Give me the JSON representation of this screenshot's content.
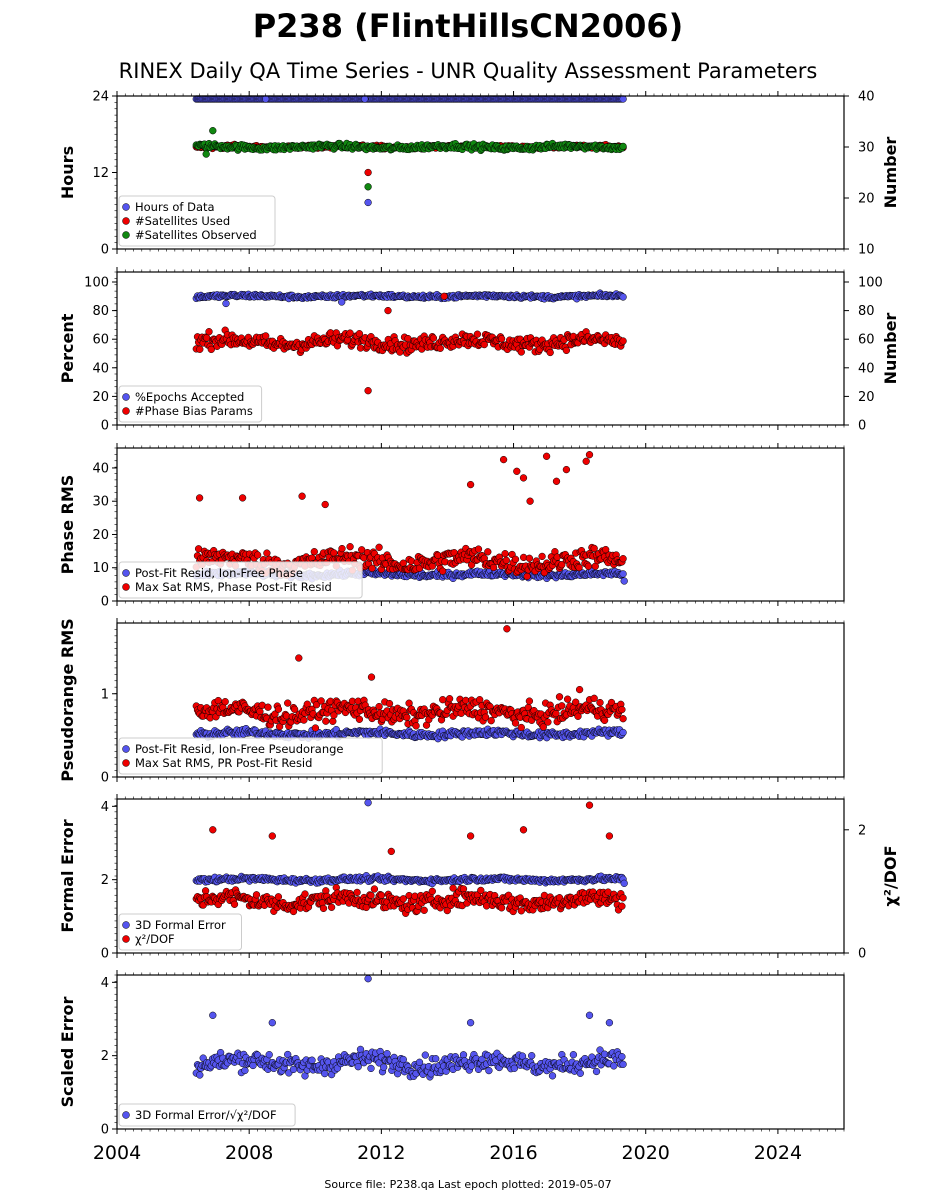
{
  "title": "P238 (FlintHillsCN2006)",
  "subtitle": "RINEX Daily QA Time Series - UNR Quality Assessment Parameters",
  "footer": "Source file: P238.qa Last epoch plotted: 2019-05-07",
  "colors": {
    "blue": "#5555ee",
    "red": "#ee0000",
    "green": "#118811",
    "edge": "#000000"
  },
  "chart_data": [
    {
      "type": "scatter",
      "panel": "hours",
      "ylabel": "Hours",
      "y2label": "Number",
      "ylim": [
        0,
        24
      ],
      "y2lim": [
        10,
        40
      ],
      "yticks": [
        "0",
        "12",
        "24"
      ],
      "y2ticks": [
        "10",
        "20",
        "30",
        "40"
      ],
      "legend_position": "lower-left",
      "series": [
        {
          "name": "Hours of Data",
          "axis": "left",
          "color": "blue",
          "start": 2006.4,
          "end": 2019.35,
          "base": 24,
          "noise": 0.05,
          "outliers": [
            [
              2011.5,
              24.0
            ],
            [
              2008.5,
              24.0
            ],
            [
              2011.6,
              7.3
            ]
          ]
        },
        {
          "name": "#Satellites Used",
          "axis": "right",
          "color": "red",
          "start": 2006.4,
          "end": 2019.35,
          "base": 30,
          "noise": 0.3,
          "outliers": [
            [
              2011.6,
              25.0
            ],
            [
              2009.2,
              30.2
            ]
          ]
        },
        {
          "name": "#Satellites Observed",
          "axis": "right",
          "color": "green",
          "start": 2006.4,
          "end": 2019.35,
          "base": 30,
          "noise": 0.5,
          "outliers": [
            [
              2006.9,
              33.2
            ],
            [
              2011.6,
              22.2
            ],
            [
              2006.7,
              28.6
            ]
          ]
        }
      ]
    },
    {
      "type": "scatter",
      "panel": "percent",
      "ylabel": "Percent",
      "y2label": "Number",
      "ylim": [
        0,
        107
      ],
      "y2lim": [
        0,
        107
      ],
      "yticks": [
        "0",
        "20",
        "40",
        "60",
        "80",
        "100"
      ],
      "y2ticks": [
        "0",
        "20",
        "40",
        "60",
        "80",
        "100"
      ],
      "legend_position": "lower-left",
      "series": [
        {
          "name": "%Epochs Accepted",
          "axis": "left",
          "color": "blue",
          "start": 2006.4,
          "end": 2019.35,
          "base": 90,
          "noise": 1.2,
          "outliers": [
            [
              2007.3,
              85
            ],
            [
              2010.8,
              86
            ]
          ]
        },
        {
          "name": "#Phase Bias Params",
          "axis": "right",
          "color": "red",
          "start": 2006.4,
          "end": 2019.35,
          "base": 58,
          "noise": 5,
          "outliers": [
            [
              2011.6,
              24
            ],
            [
              2013.9,
              90
            ],
            [
              2012.2,
              80
            ]
          ]
        }
      ]
    },
    {
      "type": "scatter",
      "panel": "phase",
      "ylabel": "Phase RMS",
      "ylim": [
        0,
        46
      ],
      "yticks": [
        "0",
        "10",
        "20",
        "30",
        "40"
      ],
      "legend_position": "lower-left",
      "series": [
        {
          "name": "Post-Fit Resid, Ion-Free Phase",
          "axis": "left",
          "color": "blue",
          "start": 2006.4,
          "end": 2019.35,
          "base": 8,
          "noise": 0.8,
          "outliers": [
            [
              2019.35,
              6
            ]
          ]
        },
        {
          "name": "Max Sat RMS, Phase Post-Fit Resid",
          "axis": "left",
          "color": "red",
          "start": 2006.4,
          "end": 2019.35,
          "base": 12,
          "noise": 3,
          "outliers": [
            [
              2006.5,
              31
            ],
            [
              2007.8,
              31
            ],
            [
              2009.6,
              31.5
            ],
            [
              2010.3,
              29
            ],
            [
              2015.7,
              42.5
            ],
            [
              2016.1,
              39
            ],
            [
              2016.3,
              37
            ],
            [
              2017.0,
              43.5
            ],
            [
              2017.6,
              39.5
            ],
            [
              2018.2,
              42
            ],
            [
              2018.3,
              44
            ],
            [
              2014.7,
              35
            ],
            [
              2016.5,
              30
            ],
            [
              2017.3,
              36
            ]
          ]
        }
      ]
    },
    {
      "type": "scatter",
      "panel": "pseudorange",
      "ylabel": "Pseudorange RMS",
      "ylim": [
        0,
        1.85
      ],
      "yticks": [
        "0",
        "1"
      ],
      "legend_position": "lower-left",
      "series": [
        {
          "name": "Post-Fit Resid, Ion-Free Pseudorange",
          "axis": "left",
          "color": "blue",
          "start": 2006.4,
          "end": 2019.35,
          "base": 0.52,
          "noise": 0.04,
          "outliers": []
        },
        {
          "name": "Max Sat RMS, PR Post-Fit Resid",
          "axis": "left",
          "color": "red",
          "start": 2006.4,
          "end": 2019.35,
          "base": 0.78,
          "noise": 0.12,
          "outliers": [
            [
              2015.8,
              1.78
            ],
            [
              2009.5,
              1.43
            ],
            [
              2011.7,
              1.2
            ],
            [
              2018.0,
              1.05
            ]
          ]
        }
      ]
    },
    {
      "type": "scatter",
      "panel": "formal",
      "ylabel": "Formal Error",
      "y2label": "χ²/DOF",
      "ylim": [
        0,
        4.2
      ],
      "y2lim": [
        0,
        2.5
      ],
      "yticks": [
        "0",
        "2",
        "4"
      ],
      "y2ticks": [
        "0",
        "2"
      ],
      "legend_position": "lower-left",
      "series": [
        {
          "name": "3D Formal Error",
          "axis": "left",
          "color": "blue",
          "start": 2006.4,
          "end": 2019.35,
          "base": 2.0,
          "noise": 0.06,
          "outliers": [
            [
              2011.6,
              4.1
            ],
            [
              2019.35,
              1.9
            ]
          ]
        },
        {
          "name": "χ²/DOF",
          "axis": "right",
          "color": "red",
          "start": 2006.4,
          "end": 2019.35,
          "base": 0.85,
          "noise": 0.14,
          "outliers": [
            [
              2006.9,
              2.0
            ],
            [
              2008.7,
              1.9
            ],
            [
              2018.3,
              2.4
            ],
            [
              2016.3,
              2.0
            ],
            [
              2018.9,
              1.9
            ],
            [
              2014.7,
              1.9
            ],
            [
              2012.3,
              1.65
            ]
          ]
        }
      ]
    },
    {
      "type": "scatter",
      "panel": "scaled",
      "ylabel": "Scaled Error",
      "ylim": [
        0,
        4.2
      ],
      "yticks": [
        "0",
        "2",
        "4"
      ],
      "legend_position": "lower-left",
      "series": [
        {
          "name": "3D Formal Error/√χ²/DOF",
          "axis": "left",
          "color": "blue",
          "start": 2006.4,
          "end": 2019.35,
          "base": 1.8,
          "noise": 0.25,
          "outliers": [
            [
              2011.6,
              4.1
            ],
            [
              2006.9,
              3.1
            ],
            [
              2018.3,
              3.1
            ],
            [
              2014.7,
              2.9
            ],
            [
              2008.7,
              2.9
            ],
            [
              2018.9,
              2.9
            ]
          ]
        }
      ]
    }
  ],
  "xaxis": {
    "xlim": [
      2004,
      2026
    ],
    "ticks": [
      "2004",
      "2008",
      "2012",
      "2016",
      "2020",
      "2024"
    ]
  }
}
